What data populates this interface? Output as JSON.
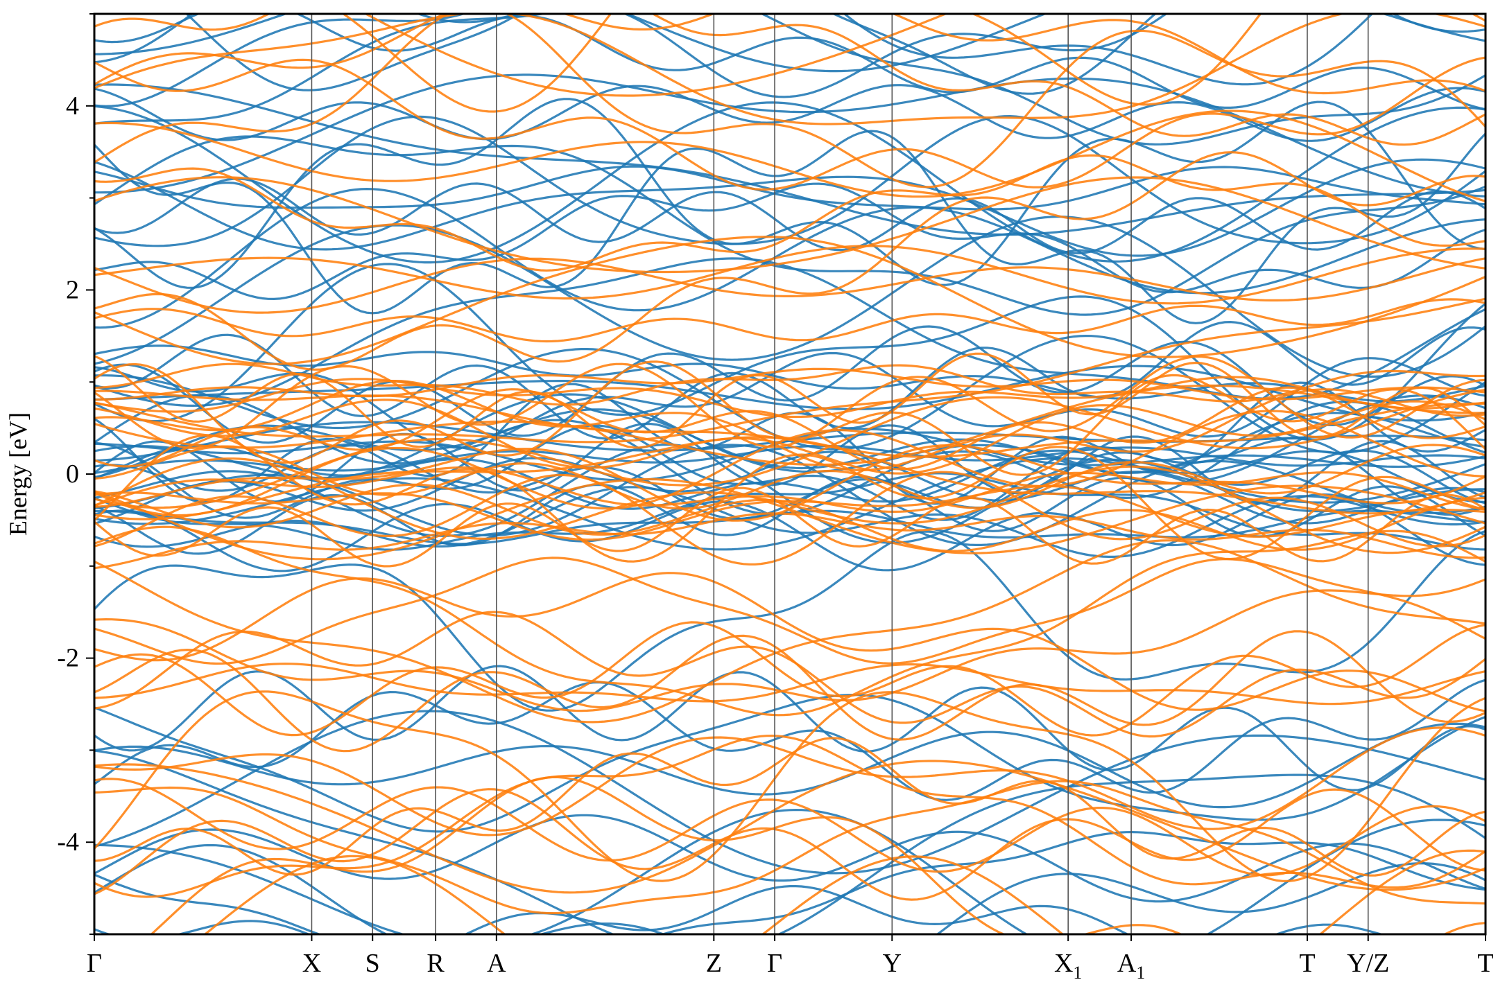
{
  "chart_data": {
    "type": "line",
    "title": "",
    "xlabel": "",
    "ylabel": "Energy [eV]",
    "ylim": [
      -5,
      5
    ],
    "yticks": [
      -4,
      -2,
      0,
      2,
      4
    ],
    "yminor_step": 1,
    "kpath": [
      {
        "label": "Γ",
        "sub": "",
        "x": 0.0
      },
      {
        "label": "X",
        "sub": "",
        "x": 0.5
      },
      {
        "label": "S",
        "sub": "",
        "x": 0.64
      },
      {
        "label": "R",
        "sub": "",
        "x": 0.785
      },
      {
        "label": "A",
        "sub": "",
        "x": 0.925
      },
      {
        "label": "Z",
        "sub": "",
        "x": 1.425
      },
      {
        "label": "Γ",
        "sub": "",
        "x": 1.565
      },
      {
        "label": "Y",
        "sub": "",
        "x": 1.835
      },
      {
        "label": "X",
        "sub": "1",
        "x": 2.24
      },
      {
        "label": "A",
        "sub": "1",
        "x": 2.385
      },
      {
        "label": "T",
        "sub": "",
        "x": 2.79
      },
      {
        "label": "Y/Z",
        "sub": "",
        "x": 2.93
      },
      {
        "label": "T",
        "sub": "",
        "x": 3.2
      }
    ],
    "xlim": [
      0,
      3.2
    ],
    "series": [
      {
        "color": "#1f77b4",
        "n_bands": 60
      },
      {
        "color": "#ff7f0e",
        "n_bands": 60
      }
    ]
  }
}
